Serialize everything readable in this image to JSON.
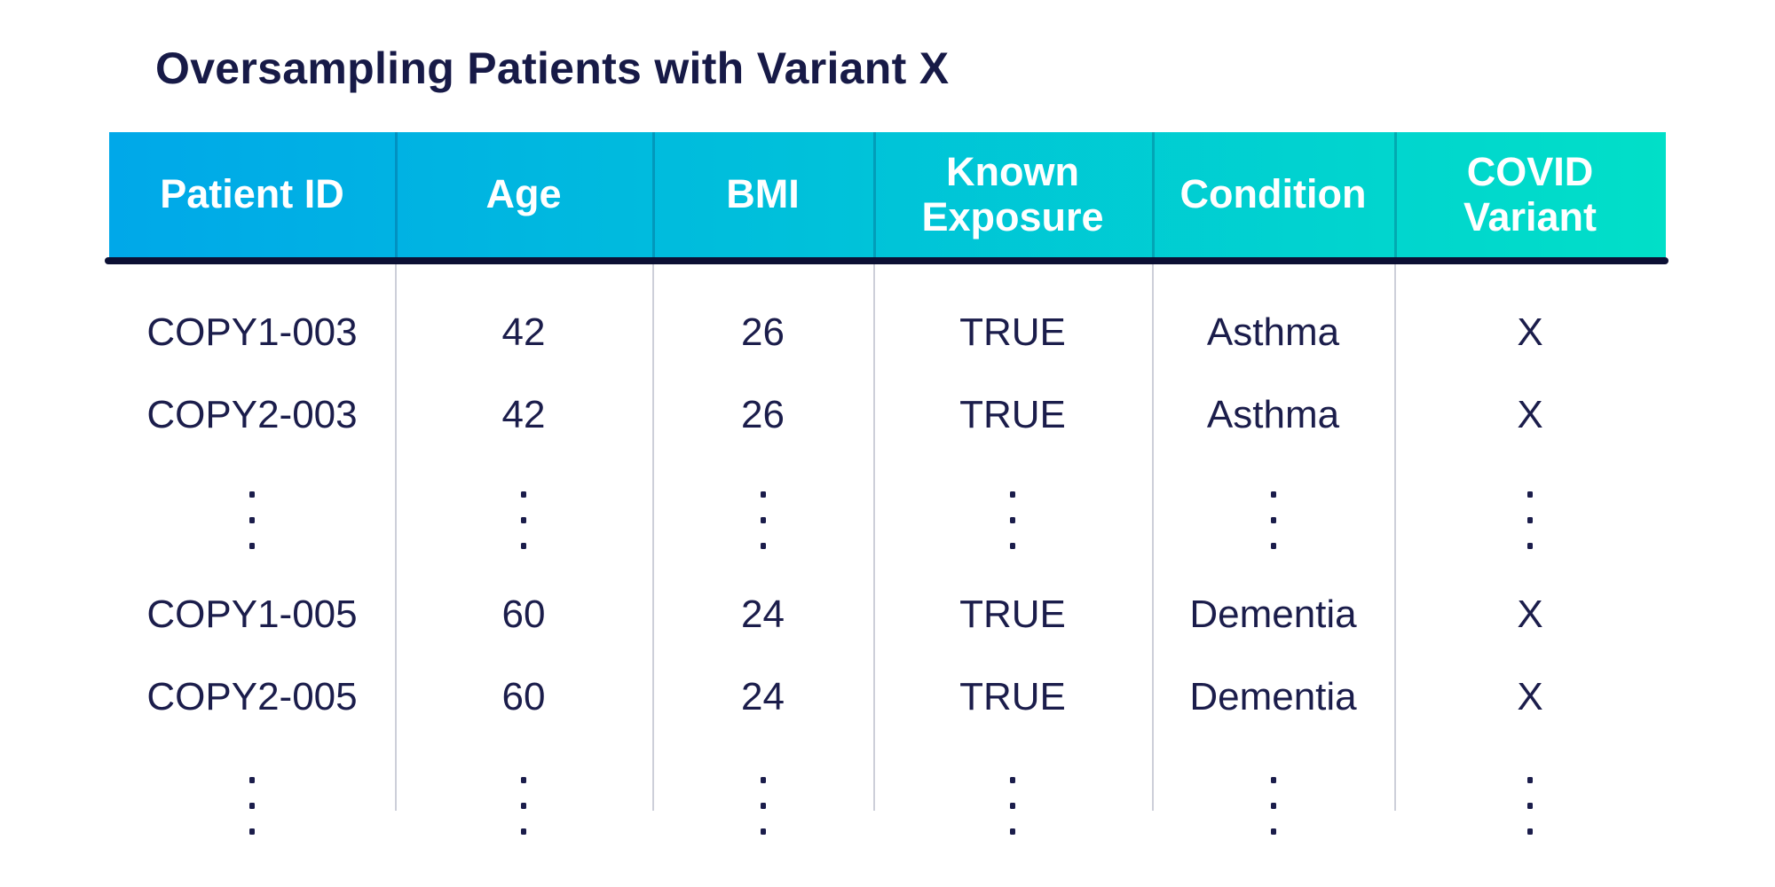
{
  "title": "Oversampling Patients with Variant X",
  "colors": {
    "header_gradient_start": "#00a8e9",
    "header_gradient_end": "#01dfc8",
    "header_text": "#ffffff",
    "header_underline": "#0c1034",
    "body_text": "#1b1d4b",
    "body_divider": "#cdcfd9",
    "title_text": "#171a47",
    "background": "#ffffff"
  },
  "chart_data": {
    "type": "table",
    "title": "Oversampling Patients with Variant X",
    "columns": [
      "Patient ID",
      "Age",
      "BMI",
      "Known Exposure",
      "Condition",
      "COVID Variant"
    ],
    "rows": [
      {
        "type": "data",
        "cells": [
          "COPY1-003",
          "42",
          "26",
          "TRUE",
          "Asthma",
          "X"
        ]
      },
      {
        "type": "data",
        "cells": [
          "COPY2-003",
          "42",
          "26",
          "TRUE",
          "Asthma",
          "X"
        ]
      },
      {
        "type": "ellipsis"
      },
      {
        "type": "data",
        "cells": [
          "COPY1-005",
          "60",
          "24",
          "TRUE",
          "Dementia",
          "X"
        ]
      },
      {
        "type": "data",
        "cells": [
          "COPY2-005",
          "60",
          "24",
          "TRUE",
          "Dementia",
          "X"
        ]
      },
      {
        "type": "ellipsis"
      }
    ],
    "layout_hints": {
      "header_style": "gradient blue to teal, white bold text, two-line wrap on long headers",
      "ellipsis_marker": "vertical three-dot column in every field"
    }
  }
}
